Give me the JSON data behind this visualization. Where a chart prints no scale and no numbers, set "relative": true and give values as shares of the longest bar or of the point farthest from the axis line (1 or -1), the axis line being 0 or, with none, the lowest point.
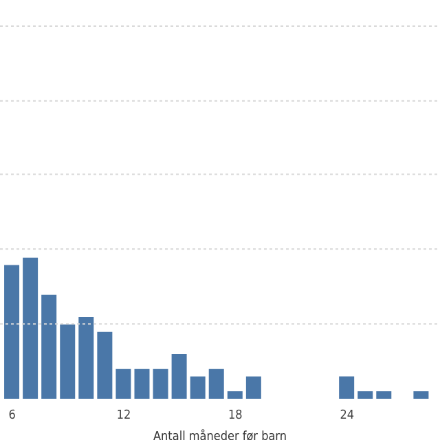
{
  "chart_data": {
    "type": "bar",
    "xlabel": "Antall måneder før barn",
    "x": [
      6,
      7,
      8,
      9,
      10,
      11,
      12,
      13,
      14,
      15,
      16,
      17,
      18,
      19,
      20,
      21,
      22,
      23,
      24,
      25,
      26,
      27,
      28
    ],
    "values": [
      0.947,
      1,
      0.737,
      0.526,
      0.579,
      0.474,
      0.211,
      0.211,
      0.211,
      0.316,
      0.158,
      0.211,
      0.053,
      0.158,
      0,
      0,
      0,
      0,
      0.158,
      0.053,
      0.053,
      0,
      0.053
    ],
    "color": "#4a77a8",
    "relative": true,
    "xlim": [
      5.35,
      29
    ],
    "xticks": [
      6,
      12,
      18,
      24
    ],
    "legend": false,
    "ref_lines": [
      {
        "axis": "y",
        "value": 0.53,
        "color": "#d8d8d8",
        "line_style": "dashed"
      },
      {
        "axis": "y",
        "value": 1.06,
        "color": "#d8d8d8",
        "line_style": "dashed"
      },
      {
        "axis": "y",
        "value": 1.59,
        "color": "#d8d8d8",
        "line_style": "dashed"
      },
      {
        "axis": "y",
        "value": 2.11,
        "color": "#d8d8d8",
        "line_style": "dashed"
      },
      {
        "axis": "y",
        "value": 2.64,
        "color": "#d8d8d8",
        "line_style": "dashed"
      }
    ]
  }
}
